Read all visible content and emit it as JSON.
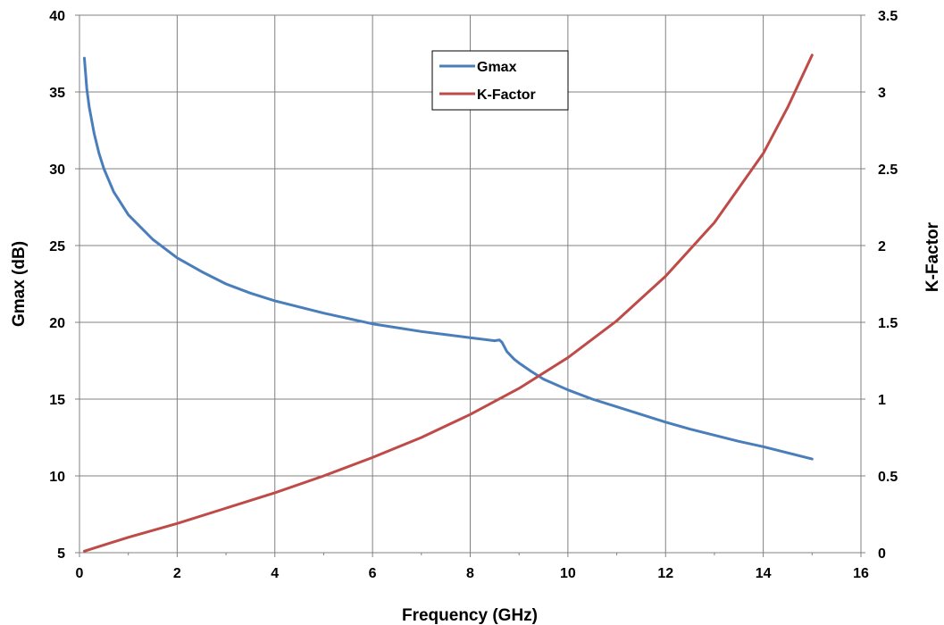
{
  "chart_data": {
    "type": "line",
    "xlabel": "Frequency (GHz)",
    "ylabel_left": "Gmax (dB)",
    "ylabel_right": "K-Factor",
    "xlim": [
      0,
      16
    ],
    "ylim_left": [
      5,
      40
    ],
    "ylim_right": [
      0,
      3.5
    ],
    "x_ticks": [
      "0",
      "2",
      "4",
      "6",
      "8",
      "10",
      "12",
      "14",
      "16"
    ],
    "y_left_ticks": [
      "5",
      "10",
      "15",
      "20",
      "25",
      "30",
      "35",
      "40"
    ],
    "y_right_ticks": [
      "0",
      "0.5",
      "1",
      "1.5",
      "2",
      "2.5",
      "3",
      "3.5"
    ],
    "grid": true,
    "legend_position": "top-center",
    "series": [
      {
        "name": "Gmax",
        "axis": "left",
        "color": "#4a7ebb",
        "points": [
          [
            0.1,
            37.2
          ],
          [
            0.15,
            35.2
          ],
          [
            0.2,
            34.0
          ],
          [
            0.3,
            32.3
          ],
          [
            0.4,
            31.0
          ],
          [
            0.5,
            30.0
          ],
          [
            0.7,
            28.5
          ],
          [
            1.0,
            27.0
          ],
          [
            1.5,
            25.4
          ],
          [
            2.0,
            24.2
          ],
          [
            2.5,
            23.3
          ],
          [
            3.0,
            22.5
          ],
          [
            3.5,
            21.9
          ],
          [
            4.0,
            21.4
          ],
          [
            4.5,
            21.0
          ],
          [
            5.0,
            20.6
          ],
          [
            5.5,
            20.25
          ],
          [
            6.0,
            19.9
          ],
          [
            6.5,
            19.65
          ],
          [
            7.0,
            19.4
          ],
          [
            7.5,
            19.2
          ],
          [
            8.0,
            19.0
          ],
          [
            8.5,
            18.8
          ],
          [
            8.6,
            18.85
          ],
          [
            8.65,
            18.7
          ],
          [
            8.75,
            18.1
          ],
          [
            8.9,
            17.6
          ],
          [
            9.0,
            17.35
          ],
          [
            9.25,
            16.8
          ],
          [
            9.5,
            16.3
          ],
          [
            10.0,
            15.6
          ],
          [
            10.5,
            15.0
          ],
          [
            11.0,
            14.5
          ],
          [
            11.5,
            14.0
          ],
          [
            12.0,
            13.5
          ],
          [
            12.5,
            13.05
          ],
          [
            13.0,
            12.65
          ],
          [
            13.5,
            12.25
          ],
          [
            14.0,
            11.9
          ],
          [
            14.5,
            11.5
          ],
          [
            15.0,
            11.1
          ]
        ]
      },
      {
        "name": "K-Factor",
        "axis": "right",
        "color": "#be4b48",
        "points": [
          [
            0.1,
            0.01
          ],
          [
            1.0,
            0.1
          ],
          [
            2.0,
            0.19
          ],
          [
            3.0,
            0.29
          ],
          [
            4.0,
            0.39
          ],
          [
            5.0,
            0.5
          ],
          [
            6.0,
            0.62
          ],
          [
            7.0,
            0.75
          ],
          [
            8.0,
            0.9
          ],
          [
            9.0,
            1.07
          ],
          [
            10.0,
            1.27
          ],
          [
            11.0,
            1.51
          ],
          [
            12.0,
            1.8
          ],
          [
            13.0,
            2.15
          ],
          [
            14.0,
            2.6
          ],
          [
            14.5,
            2.9
          ],
          [
            15.0,
            3.24
          ]
        ]
      }
    ]
  }
}
